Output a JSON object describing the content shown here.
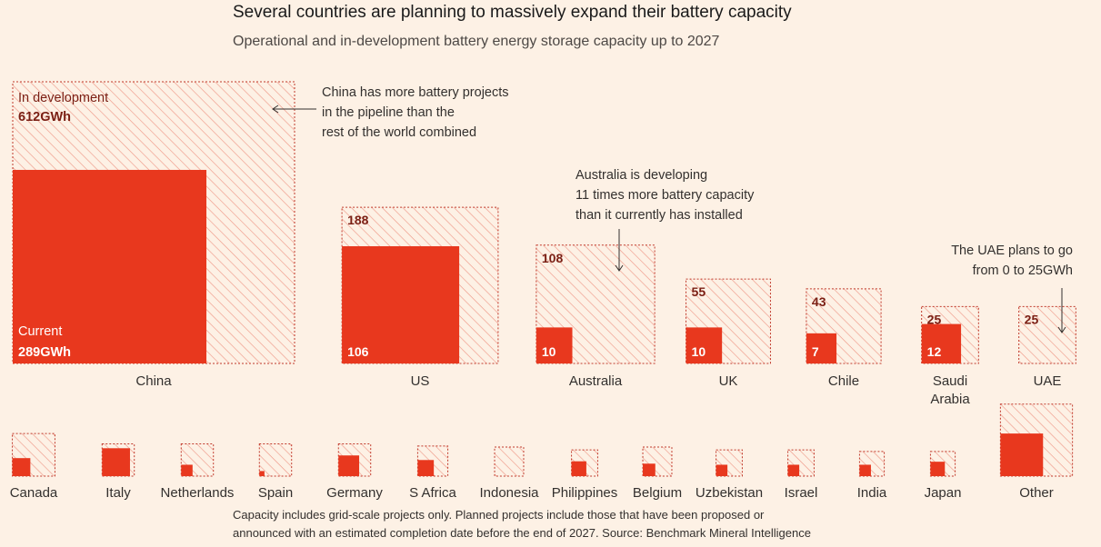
{
  "header": {
    "title": "Several countries are planning to massively expand their battery capacity",
    "subtitle": "Operational and in-development battery energy storage capacity up to 2027"
  },
  "legend": {
    "in_development_label": "In development",
    "in_development_value": "612GWh",
    "current_label": "Current",
    "current_value": "289GWh"
  },
  "annotations": {
    "china": [
      "China has more battery projects",
      "in the pipeline than the",
      "rest of the world combined"
    ],
    "australia": [
      "Australia is developing",
      "11 times more battery capacity",
      "than it currently has installed"
    ],
    "uae": [
      "The UAE plans to go",
      "from 0 to 25GWh"
    ]
  },
  "footer": {
    "source_lines": [
      "Capacity includes grid-scale projects only. Planned projects include those that have been proposed or",
      "announced with an estimated completion date before the end of 2027. Source: Benchmark Mineral Intelligence"
    ]
  },
  "colors": {
    "background": "#fdf1e5",
    "current": "#e8381e",
    "in_development_hatch": "#ef9a8a",
    "in_development_border": "#c0392b",
    "label_dark_red": "#7a1f14",
    "label_on_red": "#ffffff"
  },
  "chart_data": {
    "type": "nested-square",
    "units": "GWh",
    "series": [
      {
        "name": "Current"
      },
      {
        "name": "In development"
      }
    ],
    "countries": [
      {
        "name": "China",
        "current": 289,
        "in_development": 612,
        "labeled": true
      },
      {
        "name": "US",
        "current": 106,
        "in_development": 188,
        "labeled": true
      },
      {
        "name": "Australia",
        "current": 10,
        "in_development": 108,
        "labeled": true
      },
      {
        "name": "UK",
        "current": 10,
        "in_development": 55,
        "labeled": true
      },
      {
        "name": "Chile",
        "current": 7,
        "in_development": 43,
        "labeled": true
      },
      {
        "name": [
          "Saudi",
          "Arabia"
        ],
        "current": 12,
        "in_development": 25,
        "labeled": true
      },
      {
        "name": "UAE",
        "current": 0,
        "in_development": 25,
        "labeled": true
      },
      {
        "name": "Canada",
        "current": 2.5,
        "in_development": 14,
        "labeled": false
      },
      {
        "name": "Italy",
        "current": 6,
        "in_development": 8,
        "labeled": false
      },
      {
        "name": "Netherlands",
        "current": 1,
        "in_development": 8,
        "labeled": false
      },
      {
        "name": "Spain",
        "current": 0.2,
        "in_development": 8,
        "labeled": false
      },
      {
        "name": "Germany",
        "current": 3.3,
        "in_development": 8,
        "labeled": false
      },
      {
        "name": "S Africa",
        "current": 2,
        "in_development": 7,
        "labeled": false
      },
      {
        "name": "Indonesia",
        "current": 0,
        "in_development": 6.5,
        "labeled": false
      },
      {
        "name": "Philippines",
        "current": 1.7,
        "in_development": 5.3,
        "labeled": false
      },
      {
        "name": "Belgium",
        "current": 1.2,
        "in_development": 6.5,
        "labeled": false
      },
      {
        "name": "Uzbekistan",
        "current": 1,
        "in_development": 5.3,
        "labeled": false
      },
      {
        "name": "Israel",
        "current": 1,
        "in_development": 5.3,
        "labeled": false
      },
      {
        "name": "India",
        "current": 1,
        "in_development": 4.7,
        "labeled": false
      },
      {
        "name": "Japan",
        "current": 1.6,
        "in_development": 4.7,
        "labeled": false
      },
      {
        "name": "Other",
        "current": 14,
        "in_development": 40,
        "labeled": false
      }
    ]
  }
}
